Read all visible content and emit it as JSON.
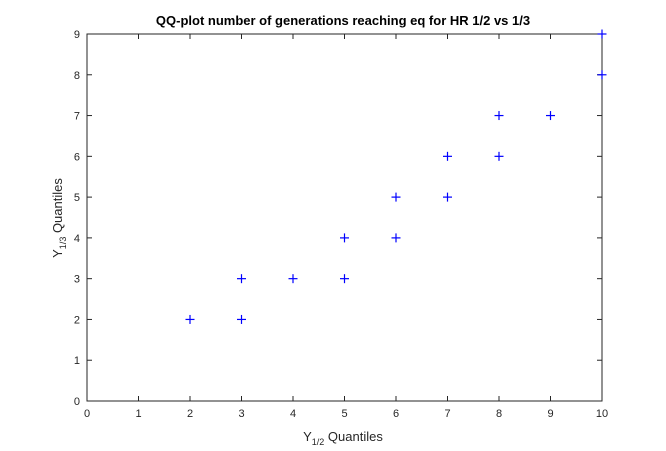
{
  "chart_data": {
    "type": "scatter",
    "title": "QQ-plot number of generations reaching eq for HR 1/2 vs 1/3",
    "xlabel": {
      "main": "Y",
      "sub": "1/2",
      "rest": " Quantiles"
    },
    "ylabel": {
      "main": "Y",
      "sub": "1/3",
      "rest": " Quantiles"
    },
    "xlim": [
      0,
      10
    ],
    "ylim": [
      0,
      9
    ],
    "xticks": [
      "0",
      "1",
      "2",
      "3",
      "4",
      "5",
      "6",
      "7",
      "8",
      "9",
      "10"
    ],
    "yticks": [
      "0",
      "1",
      "2",
      "3",
      "4",
      "5",
      "6",
      "7",
      "8",
      "9"
    ],
    "grid": false,
    "marker": "+",
    "marker_color": "#0000ff",
    "axis_color": "#262626",
    "points": [
      [
        2,
        2
      ],
      [
        3,
        2
      ],
      [
        3,
        3
      ],
      [
        4,
        3
      ],
      [
        5,
        3
      ],
      [
        5,
        4
      ],
      [
        6,
        4
      ],
      [
        6,
        5
      ],
      [
        7,
        5
      ],
      [
        7,
        6
      ],
      [
        8,
        6
      ],
      [
        8,
        7
      ],
      [
        9,
        7
      ],
      [
        10,
        8
      ],
      [
        10,
        9
      ]
    ]
  }
}
